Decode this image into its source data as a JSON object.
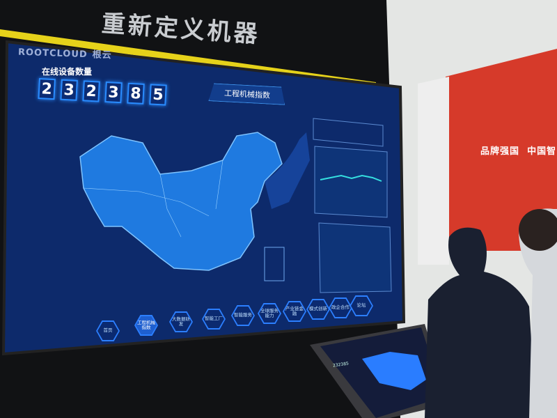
{
  "wall": {
    "slogan": "重新定义机器"
  },
  "screen": {
    "logo": "ROOTCLOUD",
    "logo_cn": "根云",
    "online_devices_label": "在线设备数量",
    "online_devices_digits": [
      "2",
      "3",
      "2",
      "3",
      "8",
      "5"
    ],
    "section_title": "工程机械指数",
    "nav": [
      {
        "label": "首页",
        "active": false
      },
      {
        "label": "工程机械指数",
        "active": true
      },
      {
        "label": "大数据研发",
        "active": false
      },
      {
        "label": "智能工厂",
        "active": false
      },
      {
        "label": "智能服务",
        "active": false
      },
      {
        "label": "全球服务能力",
        "active": false
      },
      {
        "label": "产业链金融",
        "active": false
      },
      {
        "label": "模式创新",
        "active": false
      },
      {
        "label": "政企合作",
        "active": false
      },
      {
        "label": "论坛",
        "active": false
      }
    ]
  },
  "booth": {
    "slogan": "品牌强国",
    "slogan2": "中国智"
  },
  "kiosk": {
    "digits": "232385"
  },
  "colors": {
    "screen_bg": "#0d2a6b",
    "map_blue": "#1f7ae0",
    "accent": "#2c8cff",
    "booth_red": "#d63a2a",
    "stripe_yellow": "#e6d21a"
  }
}
